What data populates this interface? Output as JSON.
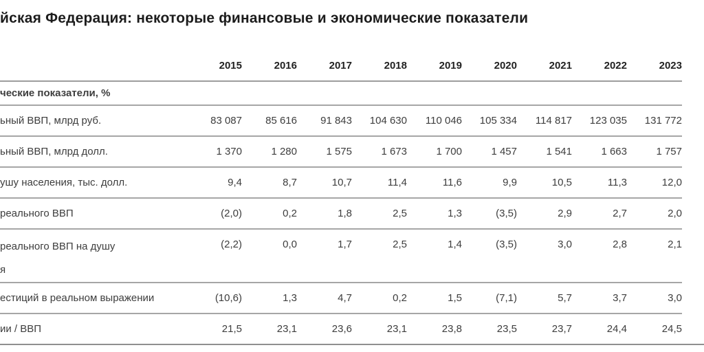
{
  "title": "йская Федерация: некоторые финансовые и экономические показатели",
  "table": {
    "years": [
      "2015",
      "2016",
      "2017",
      "2018",
      "2019",
      "2020",
      "2021",
      "2022",
      "2023"
    ],
    "section_header": "ческие показатели, %",
    "rows": [
      {
        "label_lines": [
          "ьный ВВП, млрд руб."
        ],
        "values": [
          "83 087",
          "85 616",
          "91 843",
          "104 630",
          "110 046",
          "105 334",
          "114 817",
          "123 035",
          "131 772"
        ]
      },
      {
        "label_lines": [
          "ьный ВВП, млрд долл."
        ],
        "values": [
          "1 370",
          "1 280",
          "1 575",
          "1 673",
          "1 700",
          "1 457",
          "1 541",
          "1 663",
          "1 757"
        ]
      },
      {
        "label_lines": [
          "ушу населения, тыс. долл."
        ],
        "values": [
          "9,4",
          "8,7",
          "10,7",
          "11,4",
          "11,6",
          "9,9",
          "10,5",
          "11,3",
          "12,0"
        ]
      },
      {
        "label_lines": [
          "реального ВВП"
        ],
        "values": [
          "(2,0)",
          "0,2",
          "1,8",
          "2,5",
          "1,3",
          "(3,5)",
          "2,9",
          "2,7",
          "2,0"
        ]
      },
      {
        "label_lines": [
          "реального ВВП на душу",
          "я"
        ],
        "values": [
          "(2,2)",
          "0,0",
          "1,7",
          "2,5",
          "1,4",
          "(3,5)",
          "3,0",
          "2,8",
          "2,1"
        ]
      },
      {
        "label_lines": [
          "естиций в реальном выражении"
        ],
        "values": [
          "(10,6)",
          "1,3",
          "4,7",
          "0,2",
          "1,5",
          "(7,1)",
          "5,7",
          "3,7",
          "3,0"
        ]
      },
      {
        "label_lines": [
          "ии / ВВП"
        ],
        "values": [
          "21,5",
          "23,1",
          "23,6",
          "23,1",
          "23,8",
          "23,5",
          "23,7",
          "24,4",
          "24,5"
        ]
      }
    ]
  },
  "colors": {
    "background": "#ffffff",
    "title_text": "#1c1c1c",
    "body_text": "#3d3d3d",
    "rule_dark": "#8f8f8f",
    "rule_light": "#a6a6a6"
  }
}
